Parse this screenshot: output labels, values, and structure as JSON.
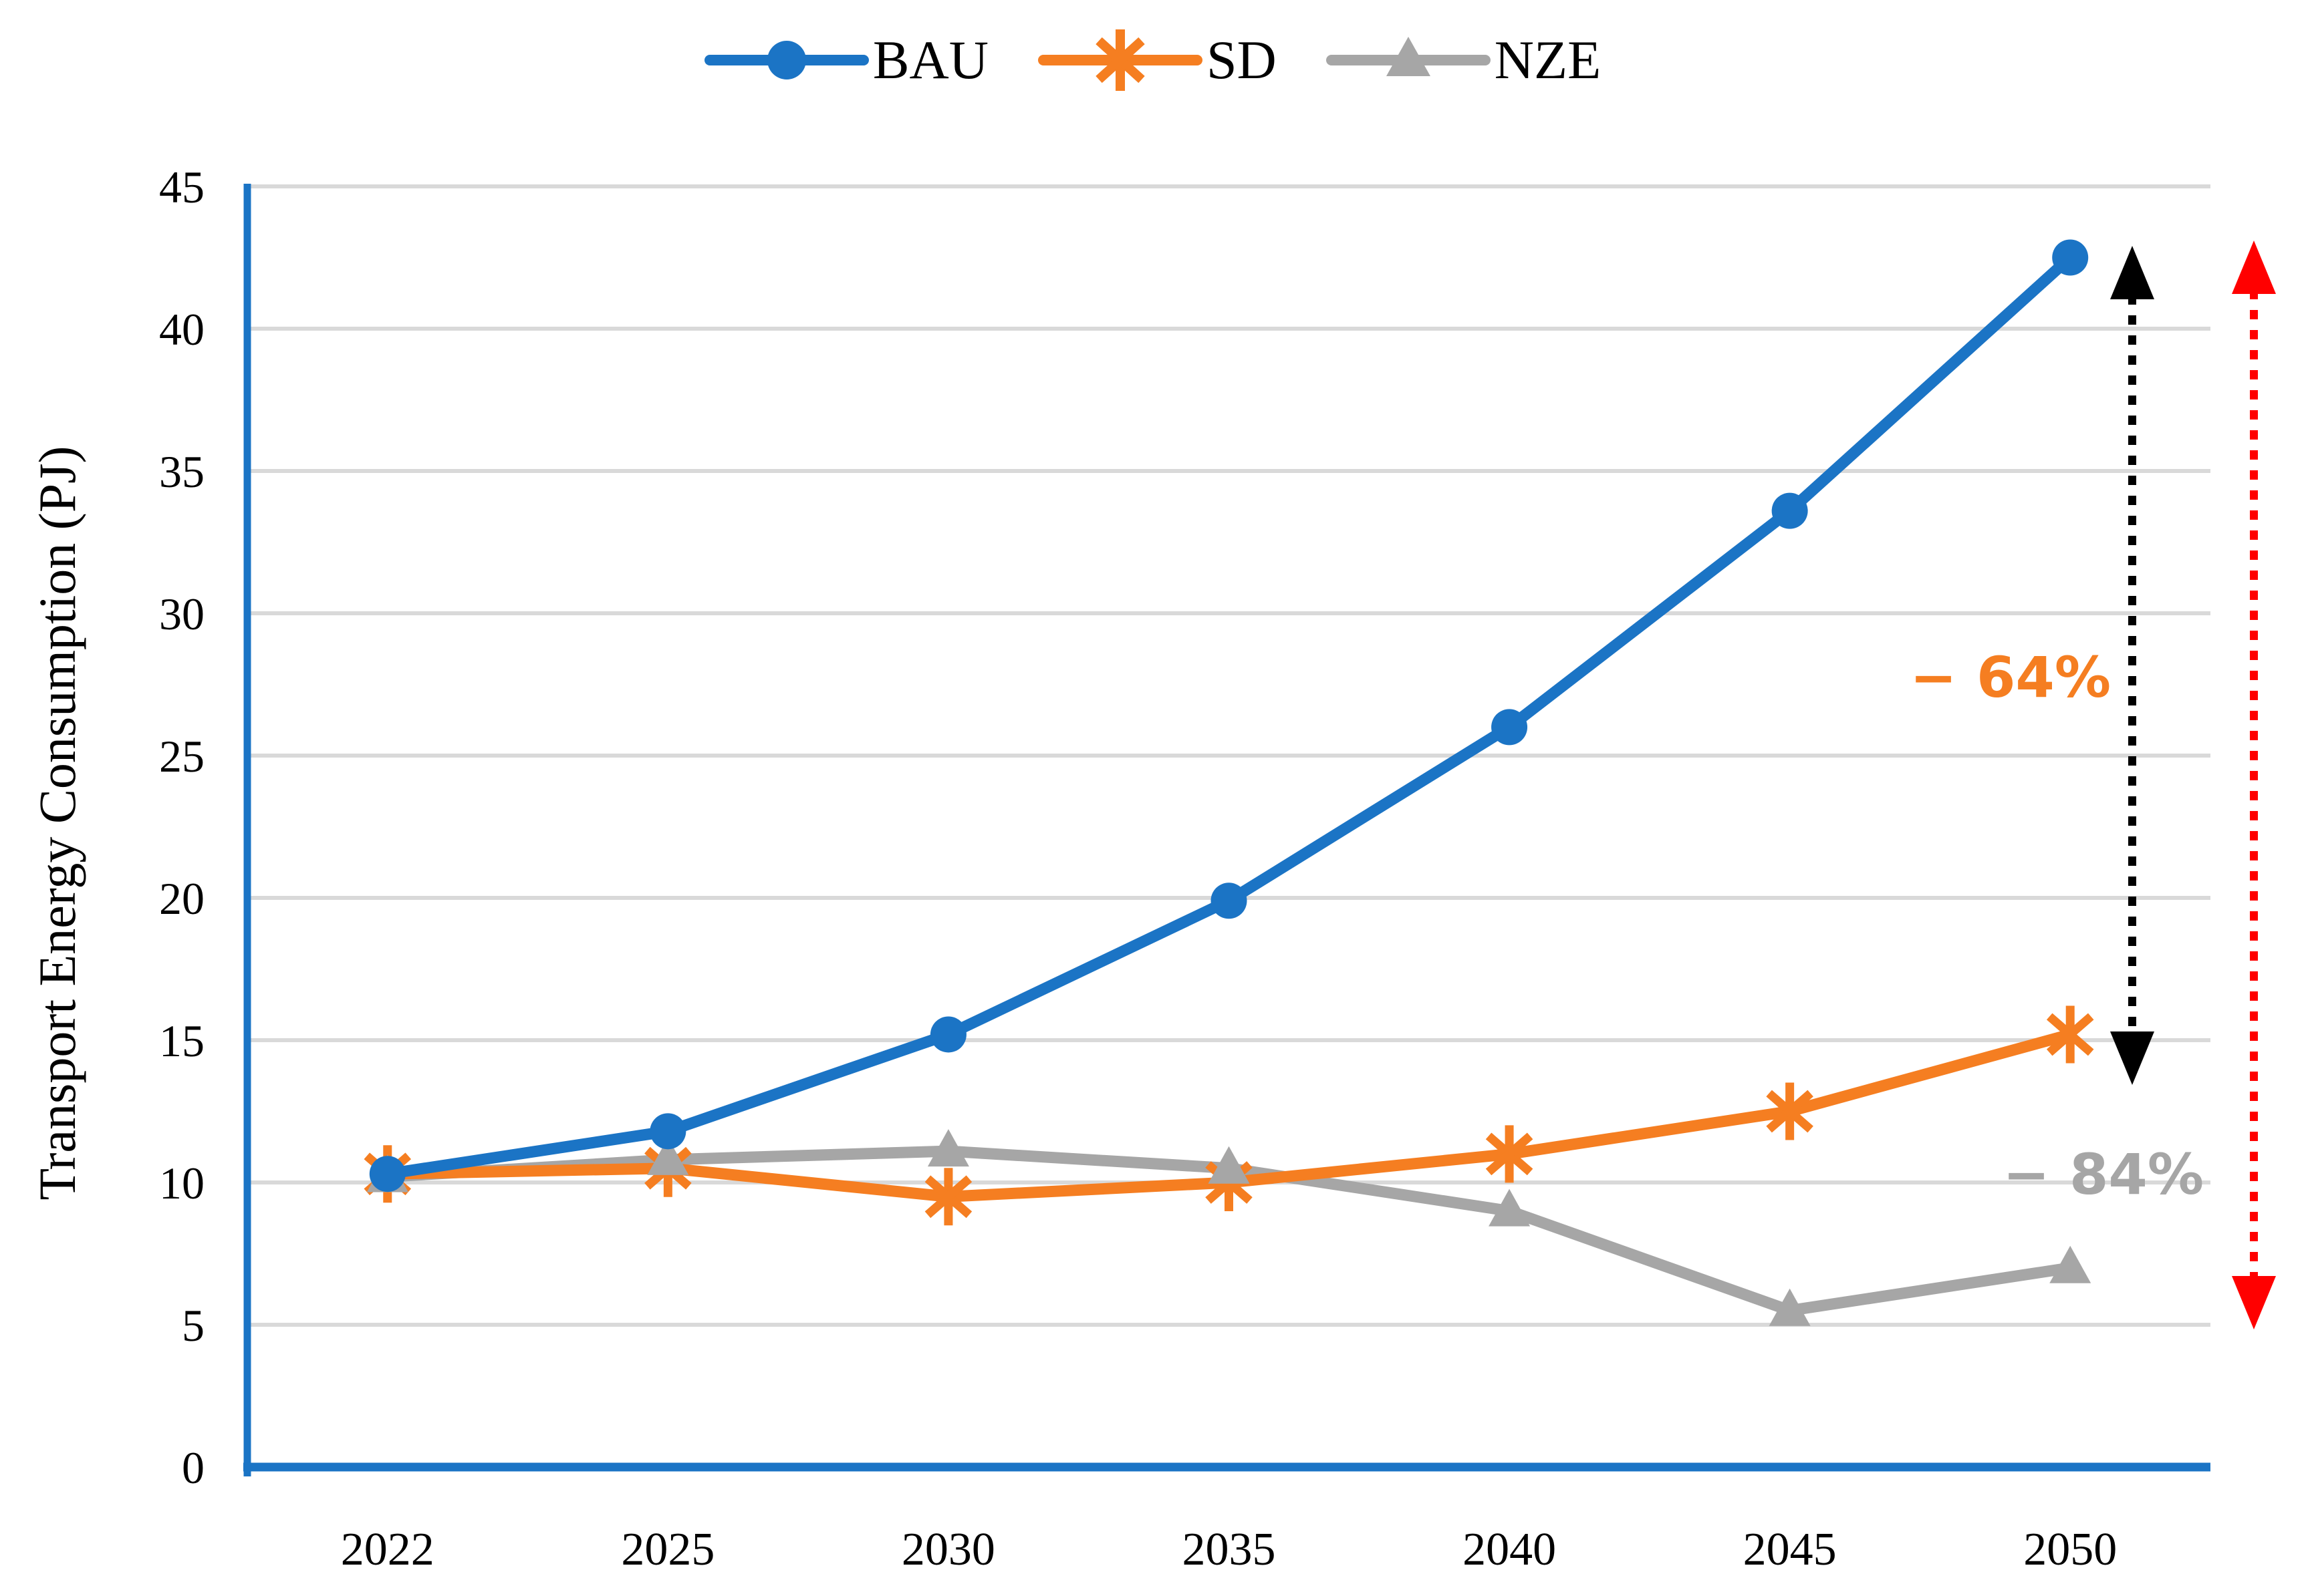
{
  "figure": {
    "background": "#FFFFFF"
  },
  "legend": {
    "items": [
      {
        "label": "BAU",
        "marker": "circle",
        "color": "#1B74C5"
      },
      {
        "label": "SD",
        "marker": "asterisk",
        "color": "#F57E21"
      },
      {
        "label": "NZE",
        "marker": "triangle",
        "color": "#A6A6A6"
      }
    ]
  },
  "y_axis": {
    "title": "Transport Energy Consumption (PJ)",
    "tick_labels": [
      "0",
      "5",
      "10",
      "15",
      "20",
      "25",
      "30",
      "35",
      "40",
      "45"
    ],
    "min": 0,
    "max": 45,
    "axis_color": "#1B74C5",
    "gridline_color": "#D9D9D9",
    "tick_color": "#000000"
  },
  "x_axis": {
    "tick_labels": [
      "2022",
      "2025",
      "2030",
      "2035",
      "2040",
      "2045",
      "2050"
    ],
    "axis_color": "#1B74C5",
    "tick_color": "#000000"
  },
  "annotations": {
    "sd_reduction": {
      "text": "− 64%",
      "color": "#F57E21"
    },
    "nze_reduction": {
      "text": "− 84%",
      "color": "#A6A6A6"
    },
    "bau_sd_arrow": {
      "style": "dotted-double-arrow",
      "color": "#000000"
    },
    "bau_nze_arrow": {
      "style": "dotted-double-arrow",
      "color": "#FF0000"
    }
  },
  "chart_data": {
    "type": "line",
    "title": "",
    "categories": [
      "2022",
      "2025",
      "2030",
      "2035",
      "2040",
      "2045",
      "2050"
    ],
    "series": [
      {
        "name": "BAU",
        "color": "#1B74C5",
        "marker": "circle",
        "values": [
          10.3,
          11.8,
          15.2,
          19.9,
          26.0,
          33.6,
          42.5
        ]
      },
      {
        "name": "SD",
        "color": "#F57E21",
        "marker": "asterisk",
        "values": [
          10.3,
          10.5,
          9.5,
          10.0,
          11.0,
          12.5,
          15.2
        ]
      },
      {
        "name": "NZE",
        "color": "#A6A6A6",
        "marker": "triangle",
        "values": [
          10.2,
          10.8,
          11.1,
          10.5,
          9.0,
          5.5,
          7.0
        ]
      }
    ],
    "xlabel": "",
    "ylabel": "Transport Energy Consumption (PJ)",
    "ylim": [
      0,
      45
    ],
    "ytick_step": 5,
    "grid": true,
    "legend_position": "top"
  }
}
